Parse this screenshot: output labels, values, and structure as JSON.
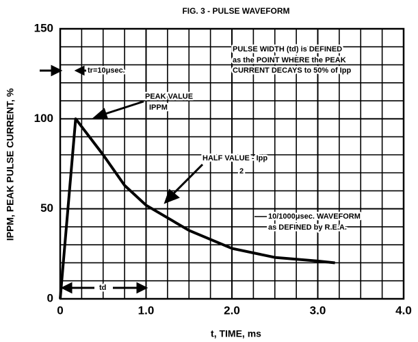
{
  "chart_data": {
    "type": "line",
    "title": "FIG. 3 - PULSE WAVEFORM",
    "x_label": "t, TIME, ms",
    "y_label": "IPPM, PEAK PULSE CURRENT, %",
    "x": [
      0,
      0.18,
      0.5,
      0.75,
      1.0,
      1.5,
      2.0,
      2.5,
      3.0,
      3.2
    ],
    "series": [
      {
        "name": "10/1000μsec. WAVEFORM",
        "color": "#000000",
        "values": [
          0,
          100,
          80,
          63,
          52,
          38,
          28,
          23,
          21,
          20
        ]
      }
    ],
    "xlim": [
      0,
      4.0
    ],
    "xticks": [
      0,
      {
        "value": 1,
        "label": "1.0"
      },
      {
        "value": 2,
        "label": "2.0"
      },
      {
        "value": 3,
        "label": "3.0"
      },
      {
        "value": 4,
        "label": "4.0"
      }
    ],
    "ylim": [
      0,
      150
    ],
    "yticks": [
      0,
      50,
      100,
      150
    ],
    "grid": true,
    "annotations": [
      "PULSE WIDTH (td) is DEFINED",
      "as the POINT WHERE the PEAK",
      "CURRENT DECAYS to 50% of Ipp",
      "tr=10μsec.",
      "PEAK VALUE",
      "IPPM",
      "HALF VALUE - Ipp",
      "2",
      "10/1000μsec. WAVEFORM",
      "as DEFINED by R.E.A.",
      "td"
    ]
  }
}
